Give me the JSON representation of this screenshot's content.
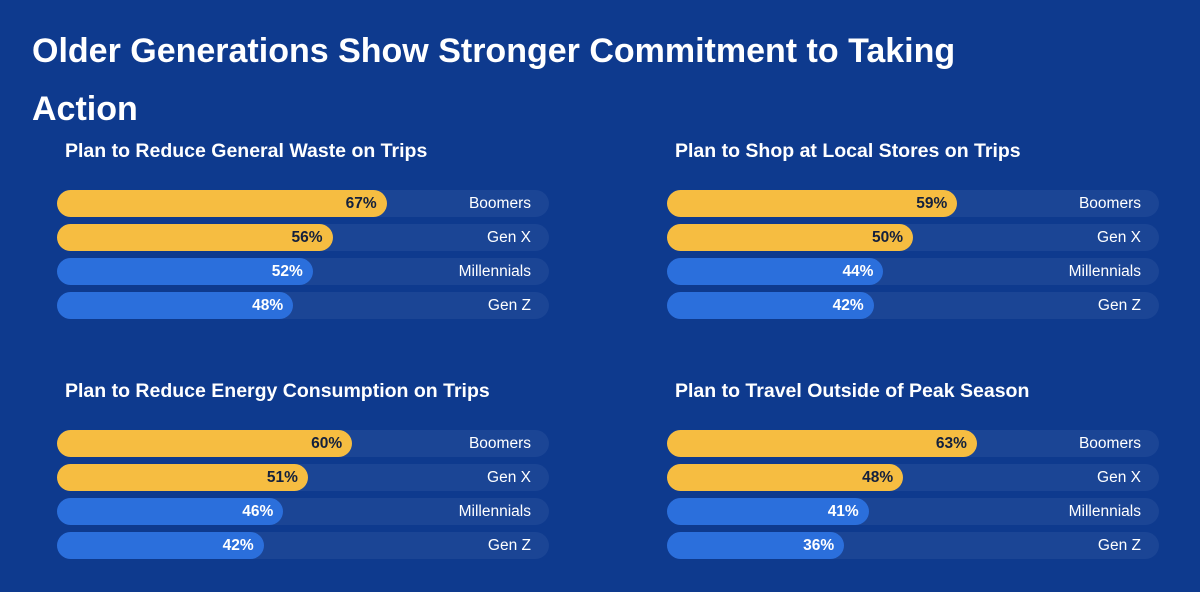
{
  "title": "Older Generations Show Stronger Commitment to Taking Action",
  "colors": {
    "background": "#0e3a8e",
    "track": "#1b4595",
    "older_generations_bar": "#f6bd41",
    "younger_generations_bar": "#2b6fdc"
  },
  "chart_data": [
    {
      "type": "bar",
      "orientation": "horizontal",
      "title": "Plan to Reduce General Waste on Trips",
      "categories": [
        "Boomers",
        "Gen X",
        "Millennials",
        "Gen Z"
      ],
      "values": [
        67,
        56,
        52,
        48
      ],
      "labels": [
        "67%",
        "56%",
        "52%",
        "48%"
      ],
      "xlim": [
        0,
        100
      ],
      "grid": false
    },
    {
      "type": "bar",
      "orientation": "horizontal",
      "title": "Plan to Shop at Local Stores on Trips",
      "categories": [
        "Boomers",
        "Gen X",
        "Millennials",
        "Gen Z"
      ],
      "values": [
        59,
        50,
        44,
        42
      ],
      "labels": [
        "59%",
        "50%",
        "44%",
        "42%"
      ],
      "xlim": [
        0,
        100
      ],
      "grid": false
    },
    {
      "type": "bar",
      "orientation": "horizontal",
      "title": "Plan to Reduce Energy Consumption on Trips",
      "categories": [
        "Boomers",
        "Gen X",
        "Millennials",
        "Gen Z"
      ],
      "values": [
        60,
        51,
        46,
        42
      ],
      "labels": [
        "60%",
        "51%",
        "46%",
        "42%"
      ],
      "xlim": [
        0,
        100
      ],
      "grid": false
    },
    {
      "type": "bar",
      "orientation": "horizontal",
      "title": "Plan to Travel Outside of Peak Season",
      "categories": [
        "Boomers",
        "Gen X",
        "Millennials",
        "Gen Z"
      ],
      "values": [
        63,
        48,
        41,
        36
      ],
      "labels": [
        "63%",
        "48%",
        "41%",
        "36%"
      ],
      "xlim": [
        0,
        100
      ],
      "grid": false
    }
  ]
}
